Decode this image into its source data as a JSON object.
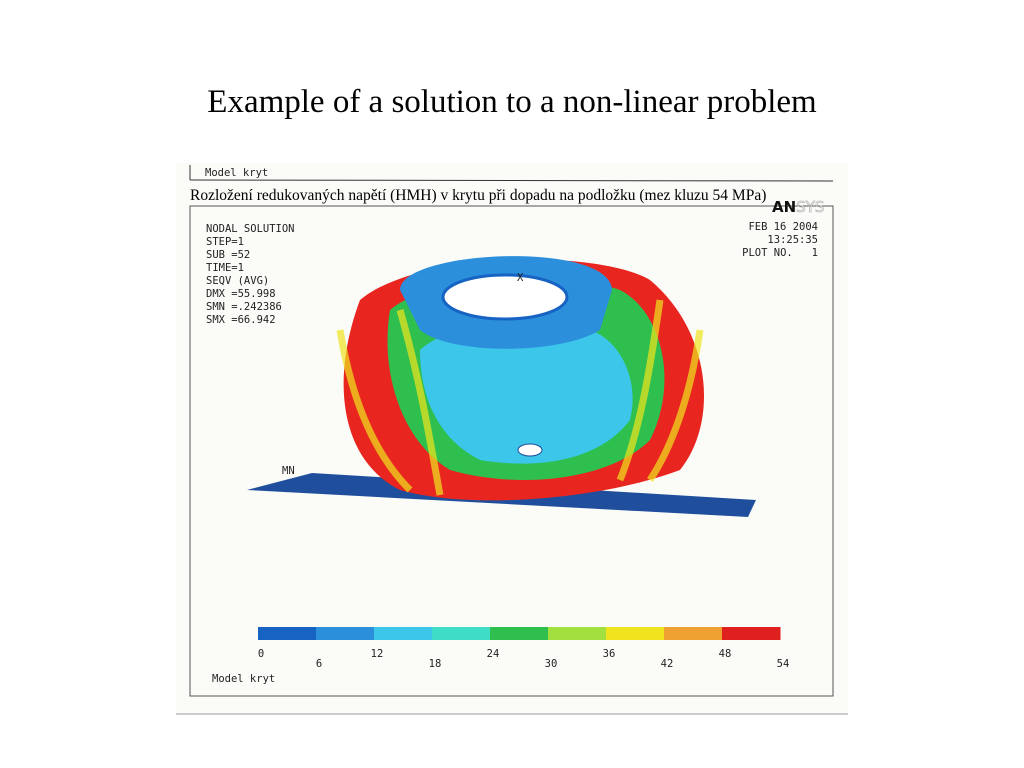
{
  "title": "Example of a solution to a non-linear problem",
  "figure": {
    "header_label": "Model kryt",
    "caption": "Rozložení redukovaných napětí (HMH) v krytu při dopadu na podložku (mez kluzu 54 MPa)",
    "info": [
      "NODAL SOLUTION",
      "STEP=1",
      "SUB =52",
      "TIME=1",
      "SEQV      (AVG)",
      "DMX =55.998",
      "SMN =.242386",
      "SMX =66.942"
    ],
    "logo": [
      "AN",
      "SYS"
    ],
    "date": "FEB 16 2004",
    "time": "13:25:35",
    "plot": "PLOT NO.   1",
    "min_label": "MN",
    "axis_label": "X",
    "legend": {
      "ticks": [
        0,
        6,
        12,
        18,
        24,
        30,
        36,
        42,
        48,
        54
      ],
      "colors": [
        "#1763c4",
        "#2b8fdb",
        "#3cc6ea",
        "#3fdcc8",
        "#2fbf4f",
        "#a2e040",
        "#efe41e",
        "#efa232",
        "#e01f1f"
      ]
    },
    "footer_label": "Model kryt"
  }
}
